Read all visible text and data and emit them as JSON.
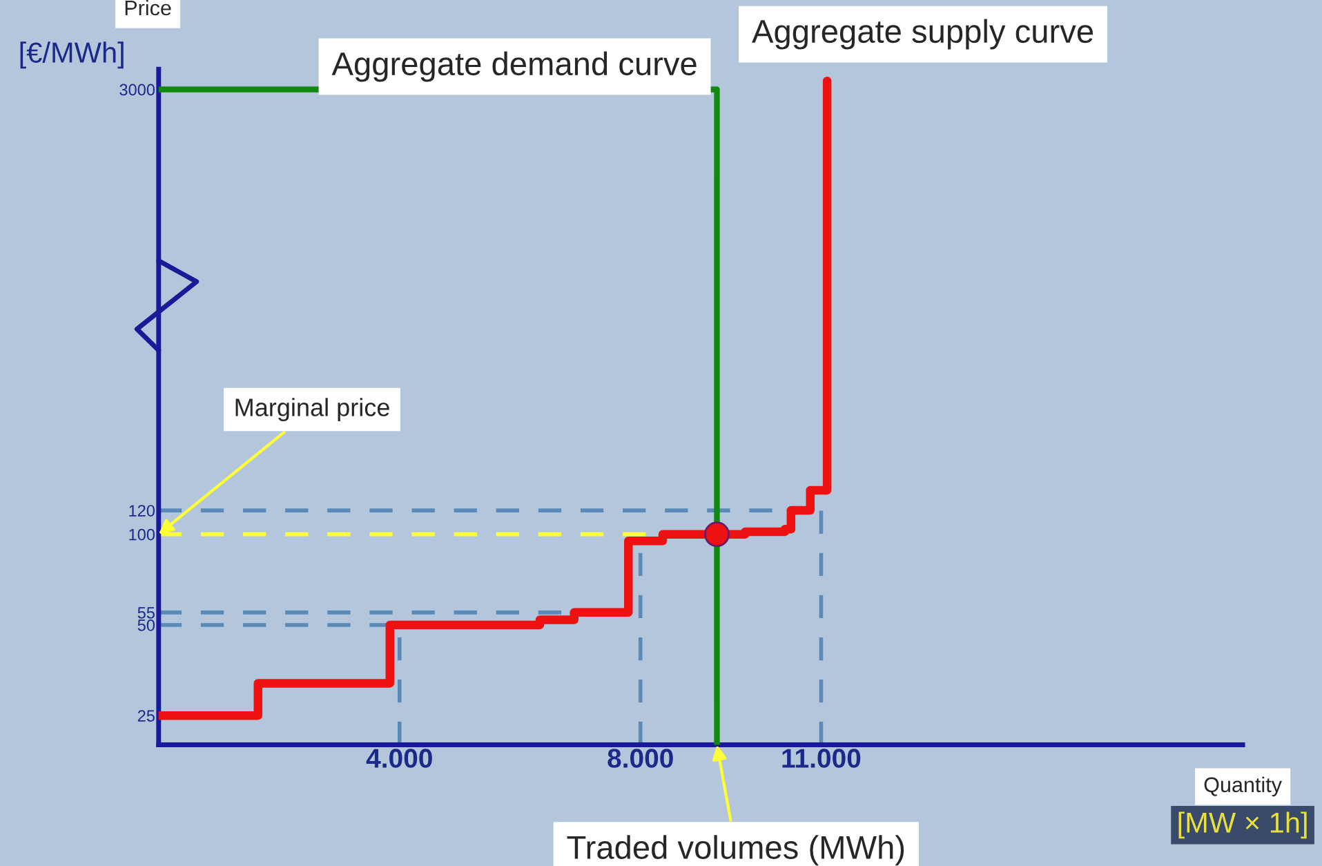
{
  "chart_data": {
    "type": "step",
    "xlabel": "Quantity [MW × 1h]",
    "ylabel": "Price [€/MWh]",
    "series": [
      {
        "name": "Aggregate demand curve",
        "type": "line",
        "color": "#118811",
        "x": [
          0,
          9270,
          9270
        ],
        "values": [
          3000,
          3000,
          20
        ]
      },
      {
        "name": "Aggregate supply curve",
        "color": "#ee1111",
        "x": [
          0,
          1650,
          3840,
          6330,
          6900,
          7800,
          8370,
          9740,
          10400,
          10500,
          10820,
          11100
        ],
        "values": [
          25,
          32,
          50,
          52,
          55,
          95,
          100,
          102,
          104,
          120,
          140,
          3200
        ]
      },
      {
        "type": "scatter",
        "color": "#ee1111",
        "x": [
          9270
        ],
        "values": [
          100
        ]
      }
    ],
    "xlim": [
      0,
      18000
    ],
    "ylim": [
      20,
      3500
    ],
    "log": "y",
    "xticks": [
      {
        "value": 4000,
        "label": "4.000"
      },
      {
        "value": 8000,
        "label": "8.000"
      },
      {
        "value": 11000,
        "label": "11.000"
      }
    ],
    "yticks": [
      25,
      50,
      55,
      100,
      120,
      3000
    ],
    "ref_lines": [
      {
        "axis": "y",
        "value": 120,
        "color": "#5a8ab8",
        "line_style": "dashed"
      },
      {
        "axis": "y",
        "value": 100,
        "color": "#ffff33",
        "line_style": "dashed"
      },
      {
        "axis": "y",
        "value": 55,
        "color": "#5a8ab8",
        "line_style": "dashed"
      },
      {
        "axis": "y",
        "value": 50,
        "color": "#5a8ab8",
        "line_style": "dashed"
      },
      {
        "axis": "x",
        "value": 4000,
        "color": "#5a8ab8",
        "line_style": "dashed"
      },
      {
        "axis": "x",
        "value": 8000,
        "color": "#5a8ab8",
        "line_style": "dashed"
      },
      {
        "axis": "x",
        "value": 11000,
        "color": "#5a8ab8",
        "line_style": "dashed"
      }
    ],
    "annotations": [
      {
        "text": "Marginal price",
        "x": 0,
        "y": 100
      },
      {
        "text": "Traded volumes (MWh)",
        "x": 9270,
        "y": 20
      }
    ],
    "grid": false
  }
}
